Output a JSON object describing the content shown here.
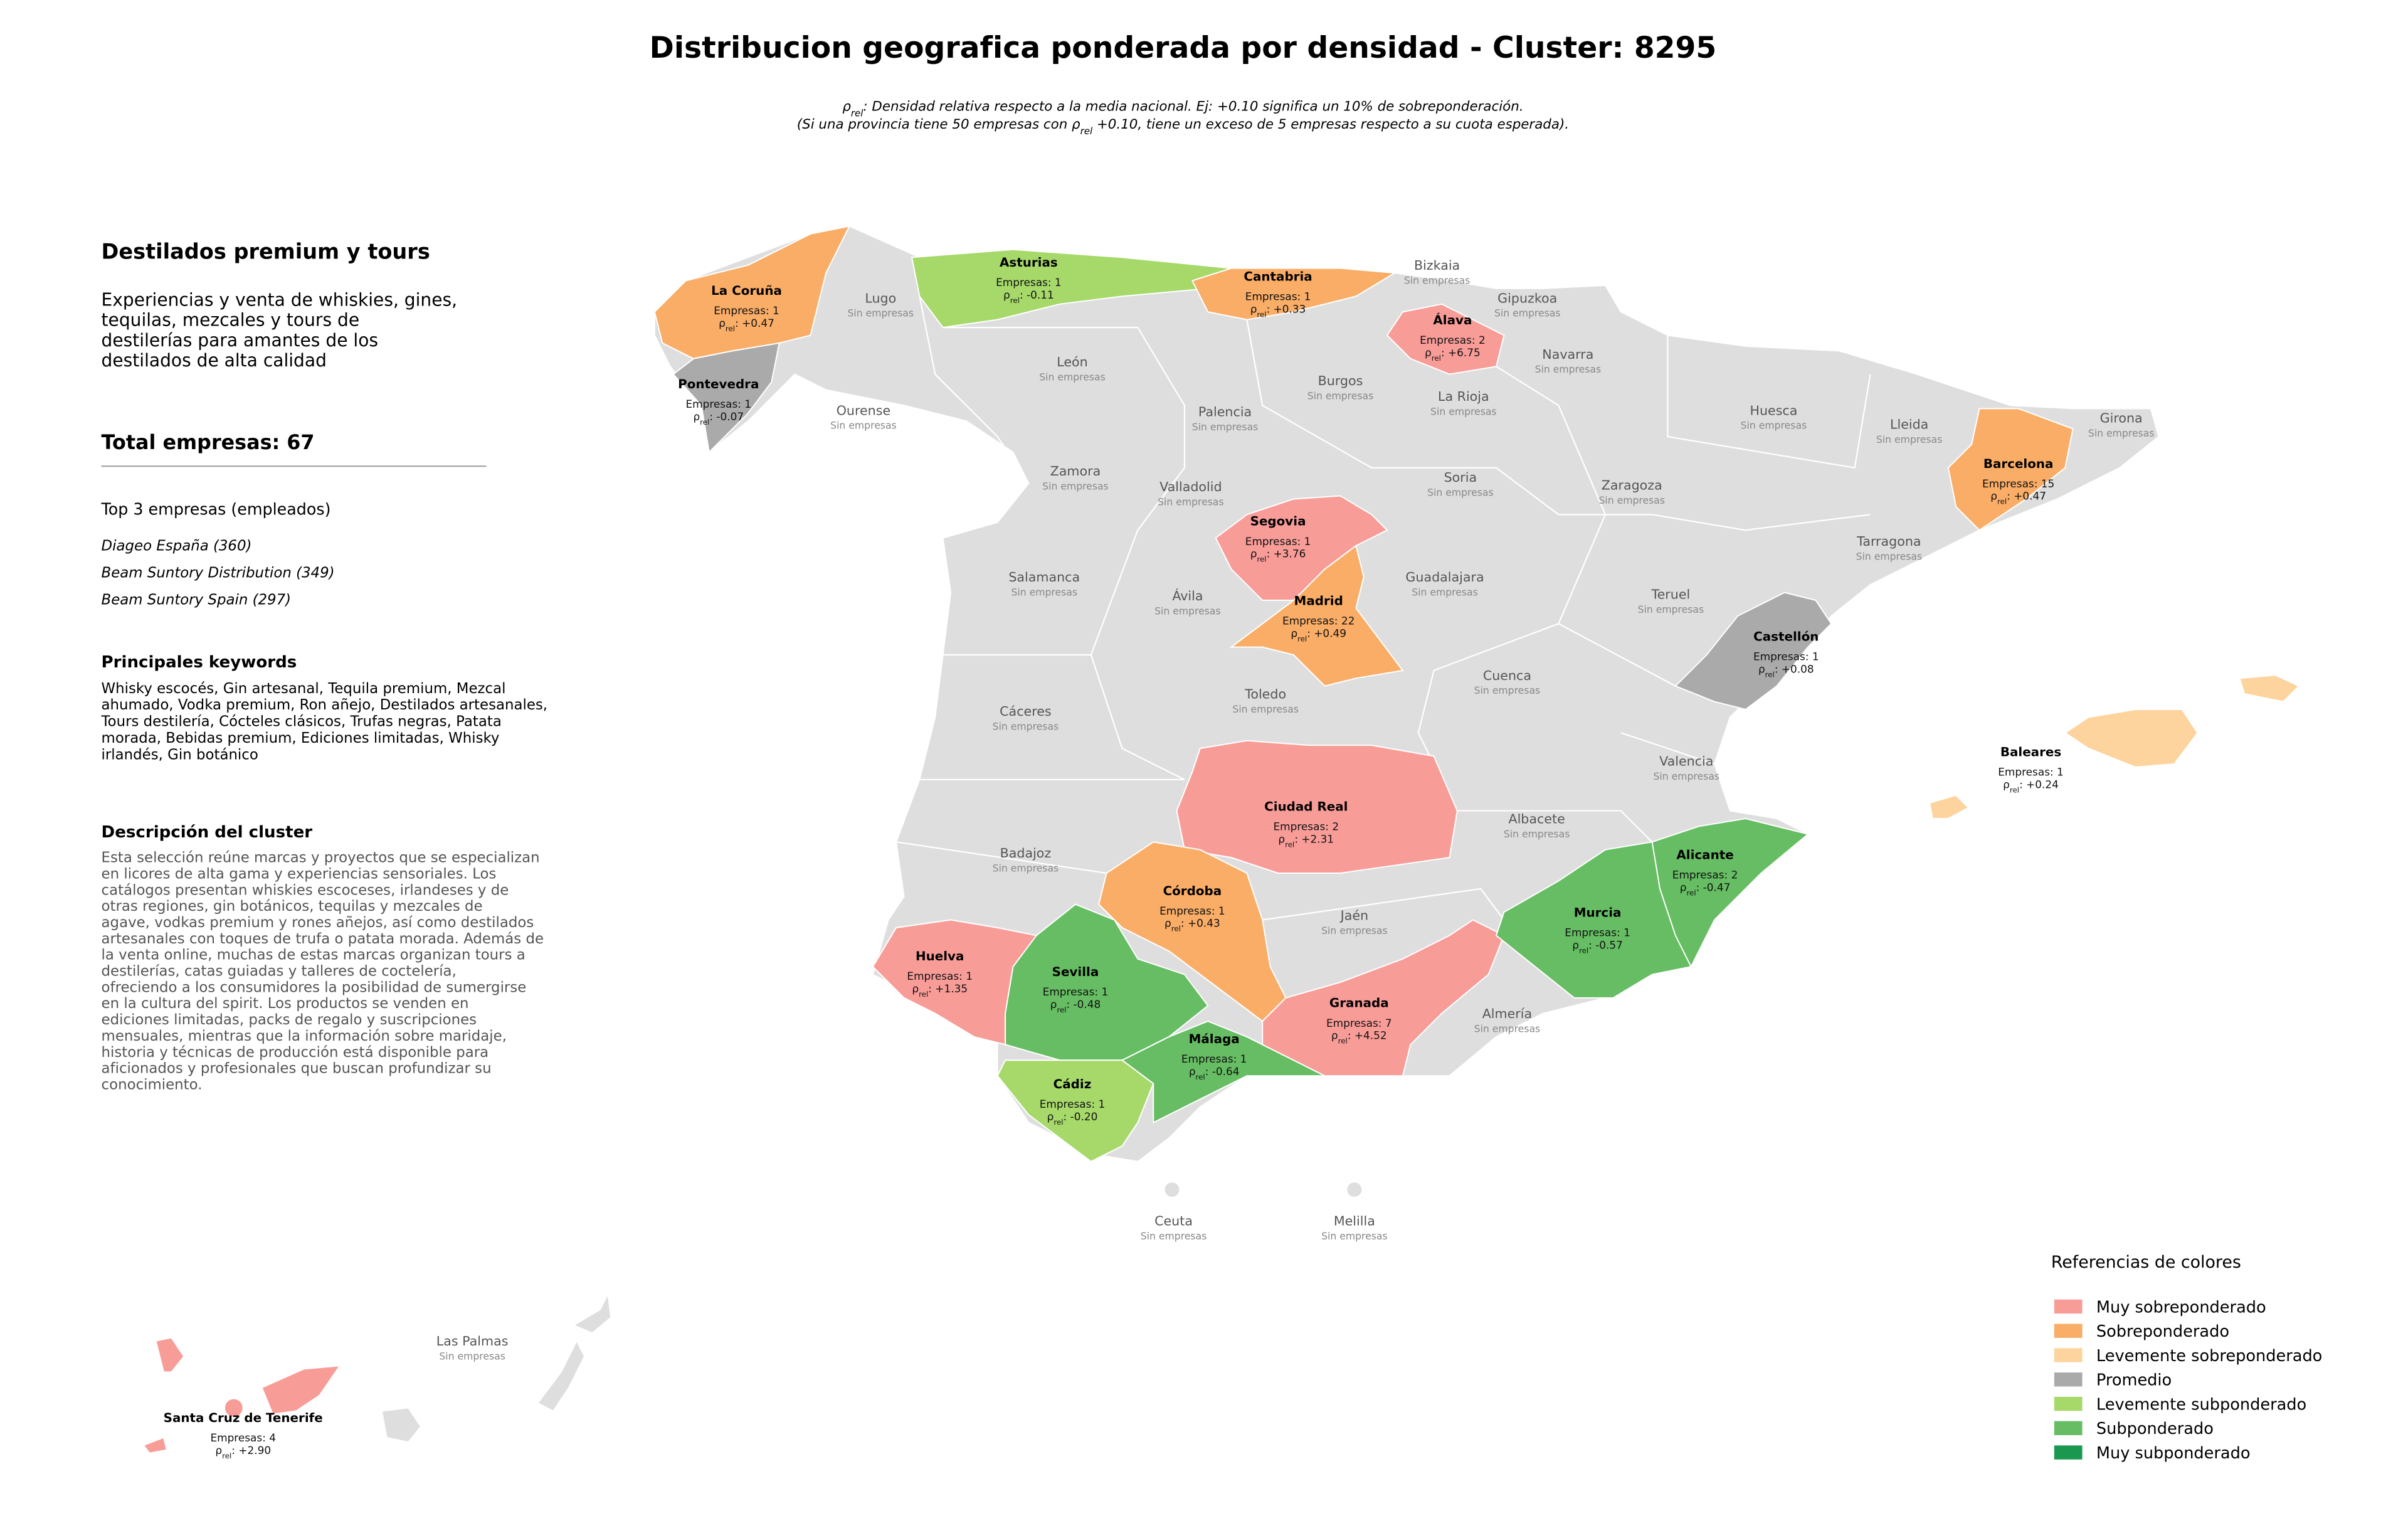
{
  "title": "Distribucion geografica ponderada por densidad - Cluster: 8295",
  "note_lines": [
    [
      {
        "text": "ρ"
      },
      {
        "sub": "rel"
      },
      {
        "text": ": Densidad relativa respecto a la media nacional. Ej: +0.10 significa un 10% de sobreponderación."
      }
    ],
    [
      {
        "text": "(Si una provincia tiene 50 empresas con ρ"
      },
      {
        "sub": "rel"
      },
      {
        "text": " +0.10, tiene un exceso de 5 empresas respecto a su cuota esperada)."
      }
    ]
  ],
  "sidebar": {
    "cluster_name": "Destilados premium y tours",
    "tagline_lines": [
      "Experiencias y venta de whiskies, gines,",
      "tequilas, mezcales y tours de",
      "destilerías para amantes de los",
      "destilados de alta calidad"
    ],
    "total": "Total empresas: 67",
    "top_heading": "Top 3 empresas (empleados)",
    "top_companies": [
      "Diageo España (360)",
      "Beam Suntory Distribution (349)",
      "Beam Suntory Spain (297)"
    ],
    "keywords_heading": "Principales keywords",
    "keywords_lines": [
      "Whisky escocés, Gin artesanal, Tequila premium, Mezcal",
      "ahumado, Vodka premium, Ron añejo, Destilados artesanales,",
      "Tours destilería, Cócteles clásicos, Trufas negras, Patata",
      "morada, Bebidas premium, Ediciones limitadas, Whisky",
      "irlandés, Gin botánico"
    ],
    "description_heading": "Descripción del cluster",
    "description_lines": [
      "Esta selección reúne marcas y proyectos que se especializan",
      "en licores de alta gama y experiencias sensoriales. Los",
      "catálogos presentan whiskies escoceses, irlandeses y de",
      "otras regiones, gin botánicos, tequilas y mezcales de",
      "agave, vodkas premium y rones añejos, así como destilados",
      "artesanales con toques de trufa o patata morada. Además de",
      "la venta online, muchas de estas marcas organizan tours a",
      "destilerías, catas guiadas y talleres de coctelería,",
      "ofreciendo a los consumidores la posibilidad de sumergirse",
      "en la cultura del spirit. Los productos se venden en",
      "ediciones limitadas, packs de regalo y suscripciones",
      "mensuales, mientras que la información sobre maridaje,",
      "historia y técnicas de producción está disponible para",
      "aficionados y profesionales que buscan profundizar su",
      "conocimiento."
    ]
  },
  "legend": {
    "title": "Referencias de colores",
    "items": [
      {
        "label": "Muy sobreponderado",
        "color": "#f89c98"
      },
      {
        "label": "Sobreponderado",
        "color": "#f9ad66"
      },
      {
        "label": "Levemente sobreponderado",
        "color": "#fdd49e"
      },
      {
        "label": "Promedio",
        "color": "#aaaaaa"
      },
      {
        "label": "Levemente subponderado",
        "color": "#a6d96a"
      },
      {
        "label": "Subponderado",
        "color": "#66bd63"
      },
      {
        "label": "Muy subponderado",
        "color": "#1a9850"
      }
    ]
  },
  "provinces": [
    {
      "name": "Lugo",
      "companies": "Sin empresas"
    },
    {
      "name": "Bizkaia",
      "companies": "Sin empresas"
    },
    {
      "name": "Gipuzkoa",
      "companies": "Sin empresas"
    },
    {
      "name": "Navarra",
      "companies": "Sin empresas"
    },
    {
      "name": "León",
      "companies": "Sin empresas"
    },
    {
      "name": "Burgos",
      "companies": "Sin empresas"
    },
    {
      "name": "La Rioja",
      "companies": "Sin empresas"
    },
    {
      "name": "Ourense",
      "companies": "Sin empresas"
    },
    {
      "name": "Palencia",
      "companies": "Sin empresas"
    },
    {
      "name": "Huesca",
      "companies": "Sin empresas"
    },
    {
      "name": "Lleida",
      "companies": "Sin empresas"
    },
    {
      "name": "Girona",
      "companies": "Sin empresas"
    },
    {
      "name": "Zamora",
      "companies": "Sin empresas"
    },
    {
      "name": "Soria",
      "companies": "Sin empresas"
    },
    {
      "name": "Zaragoza",
      "companies": "Sin empresas"
    },
    {
      "name": "Valladolid",
      "companies": "Sin empresas"
    },
    {
      "name": "Tarragona",
      "companies": "Sin empresas"
    },
    {
      "name": "Salamanca",
      "companies": "Sin empresas"
    },
    {
      "name": "Guadalajara",
      "companies": "Sin empresas"
    },
    {
      "name": "Ávila",
      "companies": "Sin empresas"
    },
    {
      "name": "Teruel",
      "companies": "Sin empresas"
    },
    {
      "name": "Cuenca",
      "companies": "Sin empresas"
    },
    {
      "name": "Toledo",
      "companies": "Sin empresas"
    },
    {
      "name": "Cáceres",
      "companies": "Sin empresas"
    },
    {
      "name": "Valencia",
      "companies": "Sin empresas"
    },
    {
      "name": "Albacete",
      "companies": "Sin empresas"
    },
    {
      "name": "Badajoz",
      "companies": "Sin empresas"
    },
    {
      "name": "Jaén",
      "companies": "Sin empresas"
    },
    {
      "name": "Almería",
      "companies": "Sin empresas"
    },
    {
      "name": "Ceuta",
      "companies": "Sin empresas"
    },
    {
      "name": "Melilla",
      "companies": "Sin empresas"
    },
    {
      "name": "Las Palmas",
      "companies": "Sin empresas"
    },
    {
      "name": "La Coruña",
      "companies": "Empresas: 1",
      "density": [
        {
          "text": "ρ"
        },
        {
          "sub": "rel"
        },
        {
          "text": ": +0.47"
        }
      ],
      "color": "#f9ad66"
    },
    {
      "name": "Pontevedra",
      "companies": "Empresas: 1",
      "density": [
        {
          "text": "ρ"
        },
        {
          "sub": "rel"
        },
        {
          "text": ": -0.07"
        }
      ],
      "color": "#aaaaaa"
    },
    {
      "name": "Asturias",
      "companies": "Empresas: 1",
      "density": [
        {
          "text": "ρ"
        },
        {
          "sub": "rel"
        },
        {
          "text": ": -0.11"
        }
      ],
      "color": "#a6d96a"
    },
    {
      "name": "Cantabria",
      "companies": "Empresas: 1",
      "density": [
        {
          "text": "ρ"
        },
        {
          "sub": "rel"
        },
        {
          "text": ": +0.33"
        }
      ],
      "color": "#f9ad66"
    },
    {
      "name": "Álava",
      "companies": "Empresas: 2",
      "density": [
        {
          "text": "ρ"
        },
        {
          "sub": "rel"
        },
        {
          "text": ": +6.75"
        }
      ],
      "color": "#f89c98"
    },
    {
      "name": "Barcelona",
      "companies": "Empresas: 15",
      "density": [
        {
          "text": "ρ"
        },
        {
          "sub": "rel"
        },
        {
          "text": ": +0.47"
        }
      ],
      "color": "#f9ad66"
    },
    {
      "name": "Segovia",
      "companies": "Empresas: 1",
      "density": [
        {
          "text": "ρ"
        },
        {
          "sub": "rel"
        },
        {
          "text": ": +3.76"
        }
      ],
      "color": "#f89c98"
    },
    {
      "name": "Madrid",
      "companies": "Empresas: 22",
      "density": [
        {
          "text": "ρ"
        },
        {
          "sub": "rel"
        },
        {
          "text": ": +0.49"
        }
      ],
      "color": "#f9ad66"
    },
    {
      "name": "Castellón",
      "companies": "Empresas: 1",
      "density": [
        {
          "text": "ρ"
        },
        {
          "sub": "rel"
        },
        {
          "text": ": +0.08"
        }
      ],
      "color": "#aaaaaa"
    },
    {
      "name": "Ciudad Real",
      "companies": "Empresas: 2",
      "density": [
        {
          "text": "ρ"
        },
        {
          "sub": "rel"
        },
        {
          "text": ": +2.31"
        }
      ],
      "color": "#f89c98"
    },
    {
      "name": "Córdoba",
      "companies": "Empresas: 1",
      "density": [
        {
          "text": "ρ"
        },
        {
          "sub": "rel"
        },
        {
          "text": ": +0.43"
        }
      ],
      "color": "#f9ad66"
    },
    {
      "name": "Huelva",
      "companies": "Empresas: 1",
      "density": [
        {
          "text": "ρ"
        },
        {
          "sub": "rel"
        },
        {
          "text": ": +1.35"
        }
      ],
      "color": "#f89c98"
    },
    {
      "name": "Sevilla",
      "companies": "Empresas: 1",
      "density": [
        {
          "text": "ρ"
        },
        {
          "sub": "rel"
        },
        {
          "text": ": -0.48"
        }
      ],
      "color": "#66bd63"
    },
    {
      "name": "Málaga",
      "companies": "Empresas: 1",
      "density": [
        {
          "text": "ρ"
        },
        {
          "sub": "rel"
        },
        {
          "text": ": -0.64"
        }
      ],
      "color": "#66bd63"
    },
    {
      "name": "Cádiz",
      "companies": "Empresas: 1",
      "density": [
        {
          "text": "ρ"
        },
        {
          "sub": "rel"
        },
        {
          "text": ": -0.20"
        }
      ],
      "color": "#a6d96a"
    },
    {
      "name": "Granada",
      "companies": "Empresas: 7",
      "density": [
        {
          "text": "ρ"
        },
        {
          "sub": "rel"
        },
        {
          "text": ": +4.52"
        }
      ],
      "color": "#f89c98"
    },
    {
      "name": "Murcia",
      "companies": "Empresas: 1",
      "density": [
        {
          "text": "ρ"
        },
        {
          "sub": "rel"
        },
        {
          "text": ": -0.57"
        }
      ],
      "color": "#66bd63"
    },
    {
      "name": "Alicante",
      "companies": "Empresas: 2",
      "density": [
        {
          "text": "ρ"
        },
        {
          "sub": "rel"
        },
        {
          "text": ": -0.47"
        }
      ],
      "color": "#66bd63"
    },
    {
      "name": "Baleares",
      "companies": "Empresas: 1",
      "density": [
        {
          "text": "ρ"
        },
        {
          "sub": "rel"
        },
        {
          "text": ": +0.24"
        }
      ],
      "color": "#fdd49e"
    },
    {
      "name": "Santa Cruz de Tenerife",
      "companies": "Empresas: 4",
      "density": [
        {
          "text": "ρ"
        },
        {
          "sub": "rel"
        },
        {
          "text": ": +2.90"
        }
      ],
      "color": "#f89c98"
    }
  ]
}
